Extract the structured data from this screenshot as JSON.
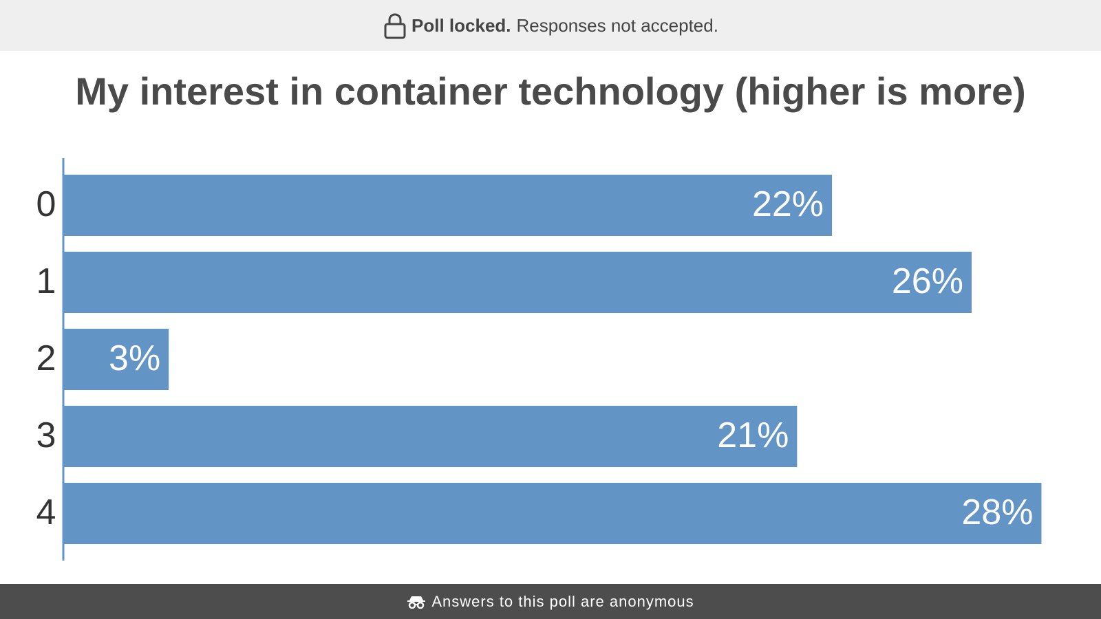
{
  "banner": {
    "bold_text": "Poll locked.",
    "text": "Responses not accepted.",
    "icon": "lock-icon"
  },
  "footer": {
    "text": "Answers to this poll are anonymous",
    "icon": "incognito-icon"
  },
  "chart_data": {
    "type": "bar",
    "orientation": "horizontal",
    "title": "My interest in container technology (higher is more)",
    "categories": [
      "0",
      "1",
      "2",
      "3",
      "4"
    ],
    "values": [
      22,
      26,
      3,
      21,
      28
    ],
    "value_labels": [
      "22%",
      "26%",
      "3%",
      "21%",
      "28%"
    ],
    "bar_color": "#6394c6",
    "axis_color": "#6394c6",
    "grid": false
  }
}
